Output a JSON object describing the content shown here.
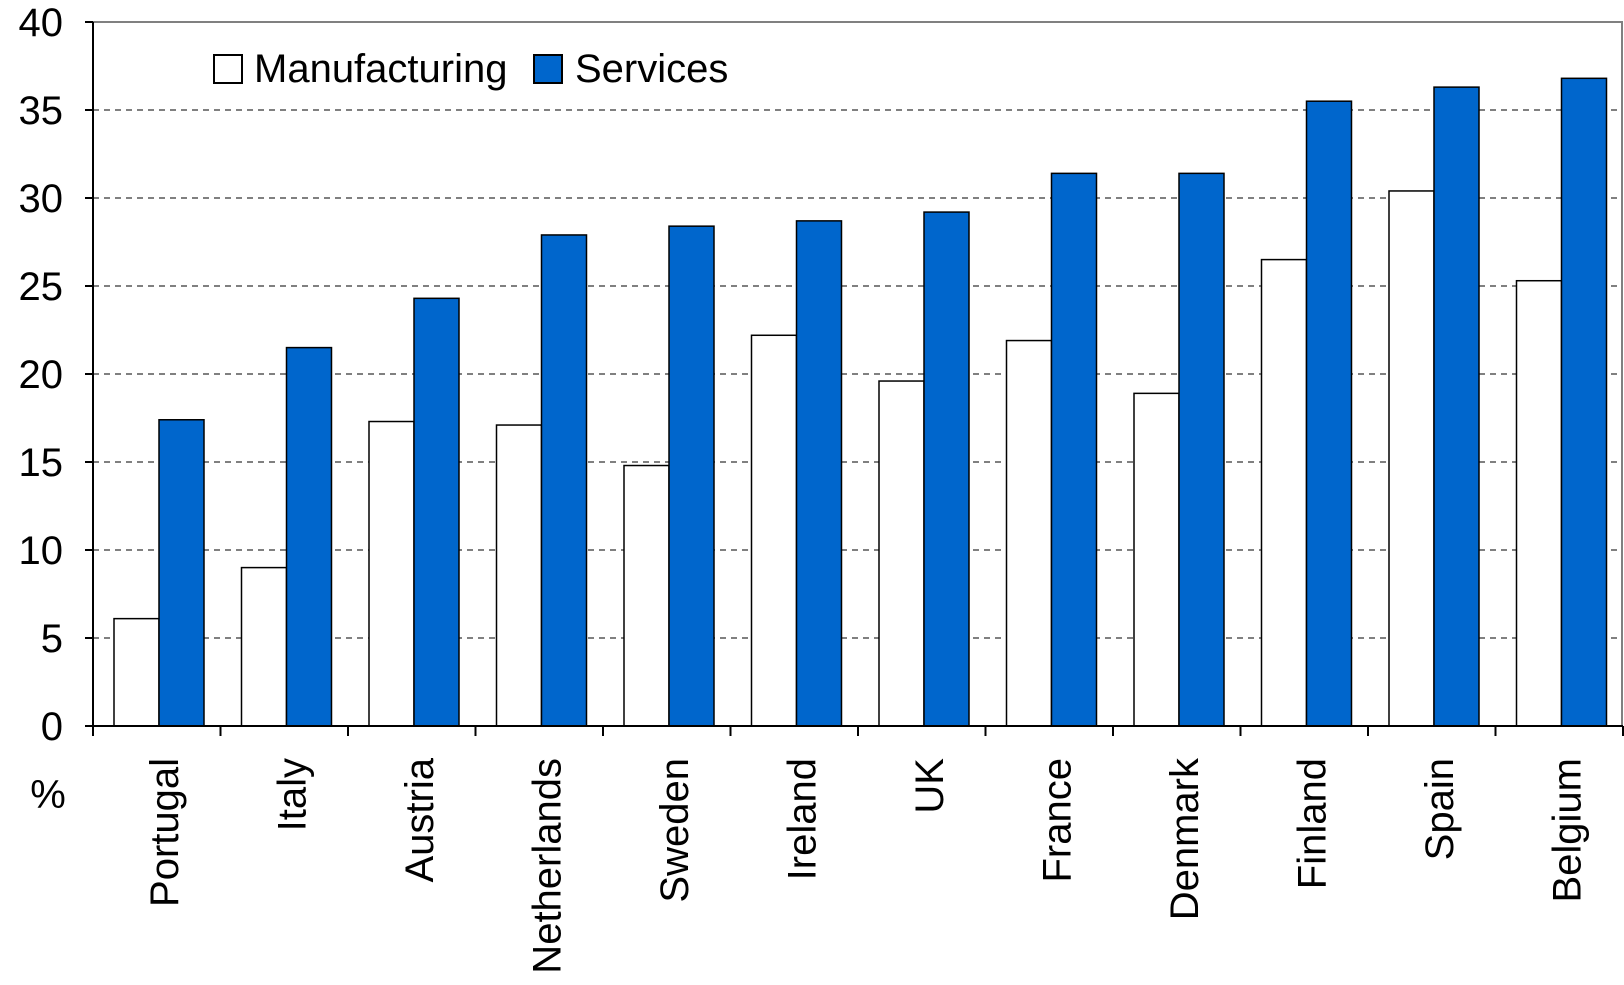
{
  "chart_data": {
    "type": "bar",
    "categories": [
      "Portugal",
      "Italy",
      "Austria",
      "Netherlands",
      "Sweden",
      "Ireland",
      "UK",
      "France",
      "Denmark",
      "Finland",
      "Spain",
      "Belgium"
    ],
    "series": [
      {
        "name": "Manufacturing",
        "color": "#ffffff",
        "values": [
          6.1,
          9.0,
          17.3,
          17.1,
          14.8,
          22.2,
          19.6,
          21.9,
          18.9,
          26.5,
          30.4,
          25.3
        ]
      },
      {
        "name": "Services",
        "color": "#0066cc",
        "values": [
          17.4,
          21.5,
          24.3,
          27.9,
          28.4,
          28.7,
          29.2,
          31.4,
          31.4,
          35.5,
          36.3,
          36.8
        ]
      }
    ],
    "title": "",
    "xlabel": "",
    "ylabel": "%",
    "ylim": [
      0,
      40
    ],
    "yticks": [
      0,
      5,
      10,
      15,
      20,
      25,
      30,
      35,
      40
    ],
    "grid": "horizontal-dashed",
    "legend_position": "top-left"
  }
}
